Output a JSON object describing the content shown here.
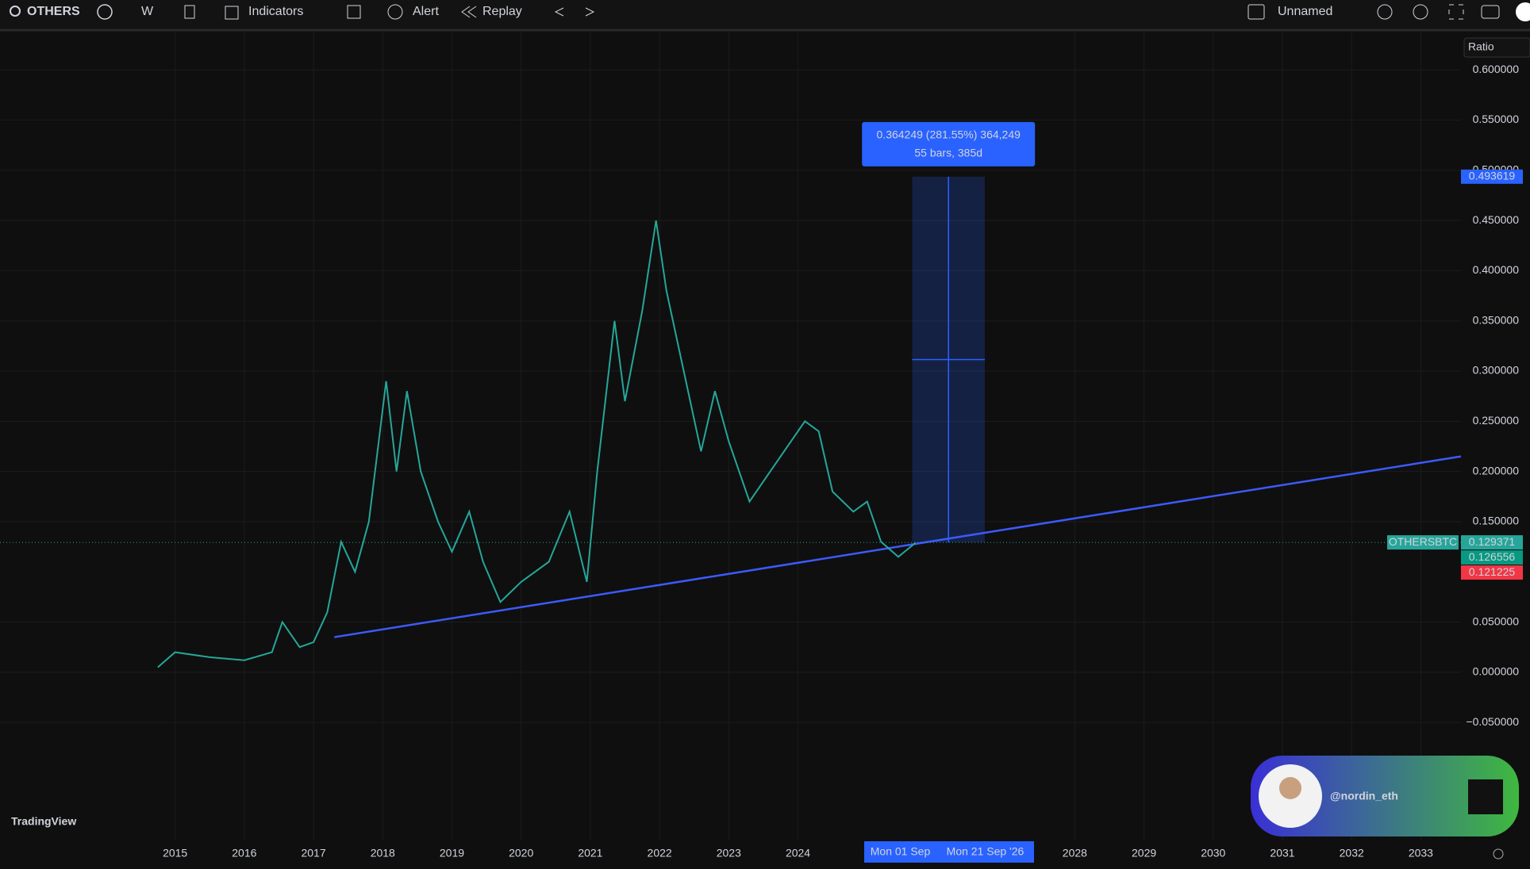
{
  "toolbar": {
    "symbol": "OTHERS",
    "interval": "W",
    "indicators": "Indicators",
    "alert": "Alert",
    "replay": "Replay",
    "layout": "Unnamed"
  },
  "chart_data": {
    "type": "line",
    "axis_label": "Ratio",
    "x": [
      2014.75,
      2015,
      2015.5,
      2016,
      2016.4,
      2016.55,
      2016.8,
      2017,
      2017.2,
      2017.4,
      2017.6,
      2017.8,
      2018.05,
      2018.2,
      2018.35,
      2018.55,
      2018.8,
      2019,
      2019.25,
      2019.45,
      2019.7,
      2020,
      2020.4,
      2020.7,
      2020.95,
      2021.1,
      2021.35,
      2021.5,
      2021.75,
      2021.95,
      2022.1,
      2022.35,
      2022.6,
      2022.8,
      2023,
      2023.3,
      2023.6,
      2023.9,
      2024.1,
      2024.3,
      2024.5,
      2024.8,
      2025,
      2025.2,
      2025.45,
      2025.7
    ],
    "series": [
      {
        "name": "OTHERSBTC",
        "color": "#26a69a",
        "values": [
          0.005,
          0.02,
          0.015,
          0.012,
          0.02,
          0.05,
          0.025,
          0.03,
          0.06,
          0.13,
          0.1,
          0.15,
          0.29,
          0.2,
          0.28,
          0.2,
          0.15,
          0.12,
          0.16,
          0.11,
          0.07,
          0.09,
          0.11,
          0.16,
          0.09,
          0.2,
          0.35,
          0.27,
          0.36,
          0.45,
          0.38,
          0.3,
          0.22,
          0.28,
          0.23,
          0.17,
          0.2,
          0.23,
          0.25,
          0.24,
          0.18,
          0.16,
          0.17,
          0.13,
          0.115,
          0.129
        ]
      }
    ],
    "xlim": [
      2012.47,
      2033.58
    ],
    "ylim": [
      -0.1675,
      0.638
    ],
    "xticks": [
      2015,
      2016,
      2017,
      2018,
      2019,
      2020,
      2021,
      2022,
      2023,
      2024,
      2028,
      2029,
      2030,
      2031,
      2032,
      2033
    ],
    "yticks": [
      {
        "value": 0.6,
        "label": "0.600000"
      },
      {
        "value": 0.55,
        "label": "0.550000"
      },
      {
        "value": 0.5,
        "label": "0.500000"
      },
      {
        "value": 0.45,
        "label": "0.450000"
      },
      {
        "value": 0.4,
        "label": "0.400000"
      },
      {
        "value": 0.35,
        "label": "0.350000"
      },
      {
        "value": 0.3,
        "label": "0.300000"
      },
      {
        "value": 0.25,
        "label": "0.250000"
      },
      {
        "value": 0.2,
        "label": "0.200000"
      },
      {
        "value": 0.15,
        "label": "0.150000"
      },
      {
        "value": 0.05,
        "label": "0.050000"
      },
      {
        "value": 0,
        "label": "0.000000"
      },
      {
        "value": -0.05,
        "label": "−0.050000"
      }
    ],
    "grid": true,
    "price_labels": [
      {
        "value": 0.493619,
        "color": "#2962ff"
      },
      {
        "value": 0.129371,
        "color": "#26a69a"
      },
      {
        "value": 0.126556,
        "color": "#089981"
      },
      {
        "value": 0.121225,
        "color": "#f23645"
      }
    ],
    "trendline": {
      "x": [
        2017.3,
        2033.58
      ],
      "values": [
        0.035,
        0.215
      ],
      "color": "#3d5afe"
    },
    "measure": {
      "label": "0.364249 (281.55%) 364,249",
      "sublabel": "55 bars, 385d",
      "xlim": [
        2025.65,
        2026.7
      ],
      "ylim": [
        0.129371,
        0.493619
      ]
    },
    "crosshair_labels": [
      "Mon 01 Sep",
      "Mon 21 Sep '26"
    ]
  },
  "watermark": "TradingView",
  "handle": "@nordin_eth"
}
